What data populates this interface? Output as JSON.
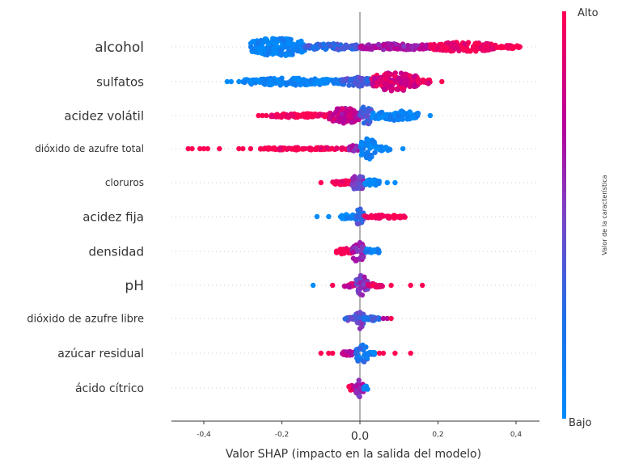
{
  "chart_data": {
    "type": "scatter",
    "subtype": "shap-beeswarm",
    "title": "",
    "xlabel": "Valor SHAP (impacto en la salida del modelo)",
    "ylabel": "",
    "xlim": [
      -0.48,
      0.46
    ],
    "x_ticks": [
      {
        "value": -0.4,
        "label": "-0,4"
      },
      {
        "value": -0.2,
        "label": "-0,2"
      },
      {
        "value": 0.0,
        "label": "0.0"
      },
      {
        "value": 0.2,
        "label": "0,2"
      },
      {
        "value": 0.4,
        "label": "0,4"
      }
    ],
    "grid": "dotted horizontal per feature",
    "colorbar": {
      "title": "Valor de la característica",
      "high_label": "Alto",
      "low_label": "Bajo",
      "low_color": "#008bfb",
      "mid_color": "#7f3fbf",
      "high_color": "#ff0052"
    },
    "features": [
      {
        "name": "alcohol",
        "min": -0.28,
        "max": 0.41,
        "density_peaks": [
          -0.2,
          0.28
        ],
        "color_trend": "low values negative, high values positive",
        "clusters": [
          {
            "from": -0.28,
            "to": -0.14,
            "width": 0.9,
            "color": 0.05
          },
          {
            "from": -0.14,
            "to": 0.0,
            "width": 0.3,
            "color": 0.3
          },
          {
            "from": 0.0,
            "to": 0.18,
            "width": 0.3,
            "color": 0.65
          },
          {
            "from": 0.18,
            "to": 0.35,
            "width": 0.45,
            "color": 0.95
          },
          {
            "from": 0.35,
            "to": 0.41,
            "width": 0.15,
            "color": 1.0
          }
        ],
        "outliers": [
          {
            "x": 0.39,
            "c": 1.0
          },
          {
            "x": 0.41,
            "c": 1.0
          }
        ]
      },
      {
        "name": "sulfatos",
        "min": -0.34,
        "max": 0.21,
        "density_peaks": [
          0.08
        ],
        "color_trend": "low values negative, high values positive",
        "clusters": [
          {
            "from": -0.3,
            "to": -0.05,
            "width": 0.35,
            "color": 0.05
          },
          {
            "from": -0.05,
            "to": 0.03,
            "width": 0.45,
            "color": 0.35
          },
          {
            "from": 0.03,
            "to": 0.15,
            "width": 0.9,
            "color": 0.85
          },
          {
            "from": 0.15,
            "to": 0.18,
            "width": 0.25,
            "color": 0.95
          }
        ],
        "outliers": [
          {
            "x": -0.34,
            "c": 0.0
          },
          {
            "x": -0.33,
            "c": 0.0
          },
          {
            "x": -0.31,
            "c": 0.0
          },
          {
            "x": 0.21,
            "c": 1.0
          }
        ]
      },
      {
        "name": "acidez volátil",
        "min": -0.26,
        "max": 0.18,
        "density_peaks": [
          0.01
        ],
        "color_trend": "high values negative, low values positive",
        "clusters": [
          {
            "from": -0.23,
            "to": -0.08,
            "width": 0.2,
            "color": 1.0
          },
          {
            "from": -0.08,
            "to": 0.0,
            "width": 0.75,
            "color": 0.75
          },
          {
            "from": 0.0,
            "to": 0.03,
            "width": 1.0,
            "color": 0.35
          },
          {
            "from": 0.03,
            "to": 0.15,
            "width": 0.45,
            "color": 0.05
          }
        ],
        "outliers": [
          {
            "x": -0.26,
            "c": 1.0
          },
          {
            "x": -0.25,
            "c": 1.0
          },
          {
            "x": -0.24,
            "c": 1.0
          },
          {
            "x": 0.18,
            "c": 0.0
          }
        ]
      },
      {
        "name": "dióxido de azufre total",
        "min": -0.44,
        "max": 0.11,
        "density_peaks": [
          0.02
        ],
        "color_trend": "high values negative, low values positive",
        "clusters": [
          {
            "from": -0.26,
            "to": -0.03,
            "width": 0.12,
            "color": 1.0
          },
          {
            "from": -0.03,
            "to": 0.0,
            "width": 0.3,
            "color": 0.6
          },
          {
            "from": 0.0,
            "to": 0.04,
            "width": 1.0,
            "color": 0.1
          },
          {
            "from": 0.04,
            "to": 0.08,
            "width": 0.2,
            "color": 0.0
          }
        ],
        "outliers": [
          {
            "x": -0.44,
            "c": 1.0
          },
          {
            "x": -0.43,
            "c": 1.0
          },
          {
            "x": -0.41,
            "c": 1.0
          },
          {
            "x": -0.4,
            "c": 1.0
          },
          {
            "x": -0.39,
            "c": 1.0
          },
          {
            "x": -0.36,
            "c": 1.0
          },
          {
            "x": -0.31,
            "c": 1.0
          },
          {
            "x": -0.3,
            "c": 1.0
          },
          {
            "x": -0.28,
            "c": 1.0
          },
          {
            "x": 0.11,
            "c": 0.0
          }
        ]
      },
      {
        "name": "cloruros",
        "min": -0.1,
        "max": 0.09,
        "density_peaks": [
          0.01
        ],
        "color_trend": "high values negative",
        "clusters": [
          {
            "from": -0.07,
            "to": -0.02,
            "width": 0.2,
            "color": 1.0
          },
          {
            "from": -0.02,
            "to": 0.01,
            "width": 0.8,
            "color": 0.5
          },
          {
            "from": 0.01,
            "to": 0.05,
            "width": 0.3,
            "color": 0.05
          }
        ],
        "outliers": [
          {
            "x": -0.1,
            "c": 1.0
          },
          {
            "x": 0.07,
            "c": 0.0
          },
          {
            "x": 0.09,
            "c": 0.0
          }
        ]
      },
      {
        "name": "acidez fija",
        "min": -0.11,
        "max": 0.12,
        "density_peaks": [
          0.0
        ],
        "color_trend": "high values positive",
        "clusters": [
          {
            "from": -0.05,
            "to": -0.01,
            "width": 0.25,
            "color": 0.05
          },
          {
            "from": -0.01,
            "to": 0.01,
            "width": 0.85,
            "color": 0.35
          },
          {
            "from": 0.01,
            "to": 0.12,
            "width": 0.15,
            "color": 1.0
          }
        ],
        "outliers": [
          {
            "x": -0.11,
            "c": 0.0
          },
          {
            "x": -0.08,
            "c": 0.0
          }
        ]
      },
      {
        "name": "densidad",
        "min": -0.06,
        "max": 0.05,
        "density_peaks": [
          -0.01
        ],
        "color_trend": "high values negative",
        "clusters": [
          {
            "from": -0.06,
            "to": -0.02,
            "width": 0.3,
            "color": 1.0
          },
          {
            "from": -0.02,
            "to": 0.01,
            "width": 1.0,
            "color": 0.6
          },
          {
            "from": 0.01,
            "to": 0.05,
            "width": 0.3,
            "color": 0.1
          }
        ],
        "outliers": []
      },
      {
        "name": "pH",
        "min": -0.12,
        "max": 0.16,
        "density_peaks": [
          0.0
        ],
        "color_trend": "mixed",
        "clusters": [
          {
            "from": -0.04,
            "to": -0.01,
            "width": 0.2,
            "color": 0.8
          },
          {
            "from": -0.01,
            "to": 0.02,
            "width": 1.0,
            "color": 0.55
          },
          {
            "from": 0.02,
            "to": 0.06,
            "width": 0.2,
            "color": 0.9
          }
        ],
        "outliers": [
          {
            "x": -0.12,
            "c": 0.0
          },
          {
            "x": -0.07,
            "c": 1.0
          },
          {
            "x": 0.08,
            "c": 1.0
          },
          {
            "x": 0.13,
            "c": 1.0
          },
          {
            "x": 0.16,
            "c": 1.0
          }
        ]
      },
      {
        "name": "dióxido de azufre libre",
        "min": -0.04,
        "max": 0.08,
        "density_peaks": [
          0.0
        ],
        "color_trend": "mixed",
        "clusters": [
          {
            "from": -0.04,
            "to": -0.01,
            "width": 0.2,
            "color": 0.4
          },
          {
            "from": -0.01,
            "to": 0.01,
            "width": 1.0,
            "color": 0.45
          },
          {
            "from": 0.01,
            "to": 0.05,
            "width": 0.2,
            "color": 0.3
          }
        ],
        "outliers": [
          {
            "x": 0.06,
            "c": 0.7
          },
          {
            "x": 0.07,
            "c": 0.7
          },
          {
            "x": 0.08,
            "c": 1.0
          }
        ]
      },
      {
        "name": "azúcar residual",
        "min": -0.1,
        "max": 0.14,
        "density_peaks": [
          0.01
        ],
        "color_trend": "mixed, low values near center",
        "clusters": [
          {
            "from": -0.05,
            "to": -0.01,
            "width": 0.2,
            "color": 0.75
          },
          {
            "from": -0.01,
            "to": 0.02,
            "width": 1.0,
            "color": 0.2
          },
          {
            "from": 0.02,
            "to": 0.04,
            "width": 0.2,
            "color": 0.1
          }
        ],
        "outliers": [
          {
            "x": -0.1,
            "c": 1.0
          },
          {
            "x": -0.08,
            "c": 1.0
          },
          {
            "x": -0.07,
            "c": 1.0
          },
          {
            "x": 0.05,
            "c": 1.0
          },
          {
            "x": 0.06,
            "c": 1.0
          },
          {
            "x": 0.09,
            "c": 1.0
          },
          {
            "x": 0.13,
            "c": 1.0
          }
        ]
      },
      {
        "name": "ácido cítrico",
        "min": -0.03,
        "max": 0.02,
        "density_peaks": [
          0.0
        ],
        "color_trend": "mixed",
        "clusters": [
          {
            "from": -0.03,
            "to": -0.01,
            "width": 0.25,
            "color": 0.9
          },
          {
            "from": -0.01,
            "to": 0.01,
            "width": 0.85,
            "color": 0.6
          },
          {
            "from": 0.01,
            "to": 0.02,
            "width": 0.25,
            "color": 0.1
          }
        ],
        "outliers": []
      }
    ]
  }
}
